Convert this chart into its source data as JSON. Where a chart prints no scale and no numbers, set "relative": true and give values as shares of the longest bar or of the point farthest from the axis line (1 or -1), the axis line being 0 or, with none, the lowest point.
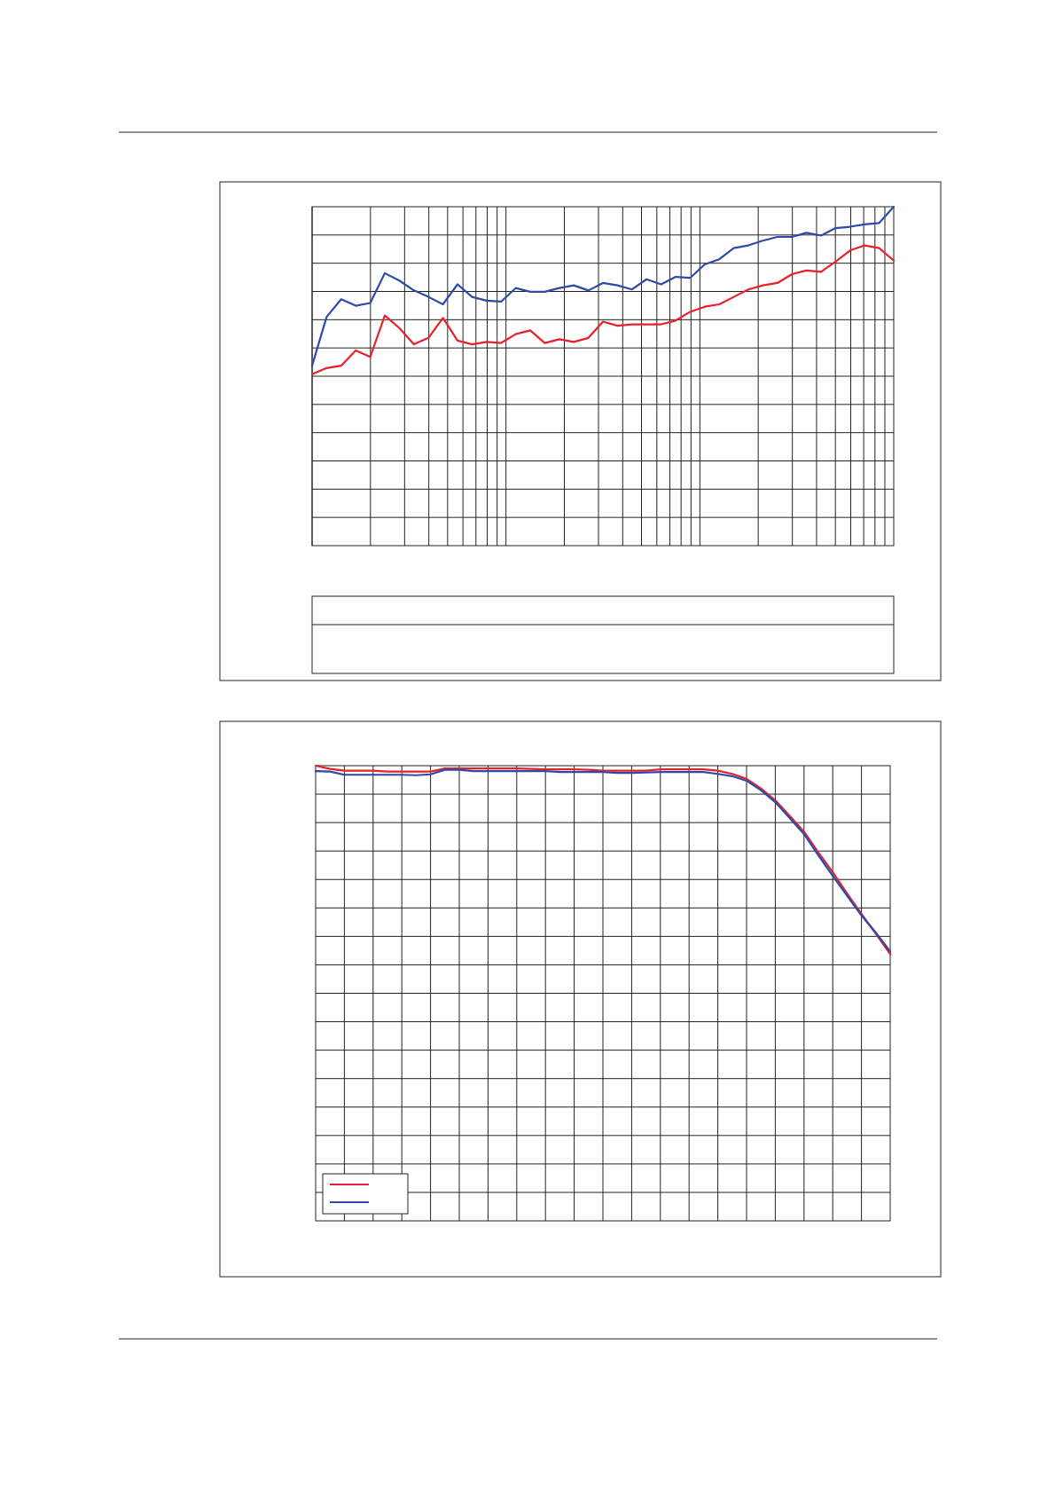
{
  "chart_data": [
    {
      "type": "line",
      "relative": true,
      "grid": true,
      "categories": [
        null,
        null,
        null,
        null,
        null,
        null,
        null,
        null,
        null,
        null,
        null,
        null,
        null,
        null,
        null,
        null,
        null,
        null,
        null,
        null,
        null,
        null,
        null,
        null,
        null,
        null,
        null,
        null,
        null,
        null,
        null,
        null,
        null,
        null,
        null,
        null,
        null,
        null,
        null,
        null,
        null
      ],
      "series": [
        {
          "color": "#2e4aa8",
          "values": [
            0.531,
            0.675,
            0.727,
            0.708,
            0.716,
            0.804,
            0.782,
            0.753,
            0.734,
            0.712,
            0.771,
            0.734,
            0.723,
            0.72,
            0.76,
            0.749,
            0.749,
            0.76,
            0.768,
            0.753,
            0.775,
            0.768,
            0.756,
            0.786,
            0.771,
            0.793,
            0.79,
            0.83,
            0.845,
            0.878,
            0.886,
            0.9,
            0.911,
            0.911,
            0.923,
            0.915,
            0.937,
            0.941,
            0.948,
            0.952,
            1
          ]
        },
        {
          "color": "#e8202a",
          "values": [
            0.506,
            0.524,
            0.531,
            0.576,
            0.557,
            0.679,
            0.642,
            0.594,
            0.613,
            0.672,
            0.605,
            0.594,
            0.601,
            0.598,
            0.624,
            0.635,
            0.598,
            0.609,
            0.601,
            0.613,
            0.661,
            0.649,
            0.653,
            0.653,
            0.653,
            0.664,
            0.69,
            0.705,
            0.712,
            0.734,
            0.756,
            0.768,
            0.775,
            0.801,
            0.812,
            0.808,
            0.838,
            0.871,
            0.886,
            0.878,
            0.841
          ]
        }
      ]
    },
    {
      "type": "line",
      "relative": true,
      "grid": true,
      "categories": [
        null,
        null,
        null,
        null,
        null,
        null,
        null,
        null,
        null,
        null,
        null,
        null,
        null,
        null,
        null,
        null,
        null,
        null,
        null,
        null,
        null,
        null,
        null,
        null,
        null,
        null,
        null,
        null,
        null,
        null,
        null,
        null,
        null,
        null,
        null,
        null,
        null,
        null,
        null,
        null,
        null
      ],
      "series": [
        {
          "color": "#e8202a",
          "values": [
            1,
            0.993,
            0.989,
            0.989,
            0.989,
            0.987,
            0.987,
            0.987,
            0.987,
            0.994,
            0.994,
            0.994,
            0.994,
            0.994,
            0.994,
            0.993,
            0.992,
            0.992,
            0.992,
            0.991,
            0.989,
            0.989,
            0.989,
            0.989,
            0.992,
            0.992,
            0.992,
            0.992,
            0.989,
            0.982,
            0.971,
            0.95,
            0.924,
            0.89,
            0.855,
            0.809,
            0.766,
            0.719,
            0.674,
            0.631,
            0.586
          ]
        },
        {
          "color": "#2e4aa8",
          "values": [
            0.988,
            0.987,
            0.98,
            0.98,
            0.98,
            0.98,
            0.98,
            0.979,
            0.981,
            0.991,
            0.991,
            0.988,
            0.988,
            0.988,
            0.988,
            0.988,
            0.988,
            0.986,
            0.986,
            0.986,
            0.986,
            0.984,
            0.984,
            0.985,
            0.986,
            0.986,
            0.986,
            0.986,
            0.982,
            0.977,
            0.967,
            0.946,
            0.92,
            0.885,
            0.85,
            0.803,
            0.758,
            0.714,
            0.671,
            0.633,
            0.592
          ]
        }
      ]
    }
  ]
}
